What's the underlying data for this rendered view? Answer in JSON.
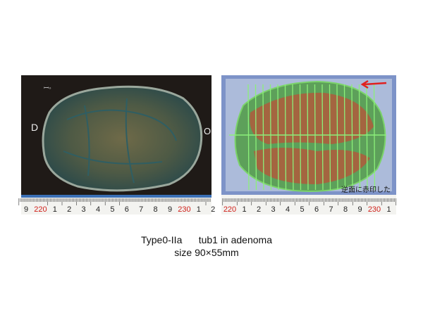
{
  "left_photo": {
    "marks": [
      "D",
      "O"
    ],
    "ruler": [
      "9",
      "220",
      "1",
      "2",
      "3",
      "4",
      "5",
      "6",
      "7",
      "8",
      "9",
      "230",
      "1",
      "2"
    ]
  },
  "right_photo": {
    "note": "逆面に赤印した",
    "ruler": [
      "220",
      "1",
      "2",
      "3",
      "4",
      "5",
      "6",
      "7",
      "8",
      "9",
      "230",
      "1"
    ]
  },
  "caption": {
    "line1": "Type0-IIa      tub1 in adenoma",
    "line2": "size 90×55mm"
  }
}
